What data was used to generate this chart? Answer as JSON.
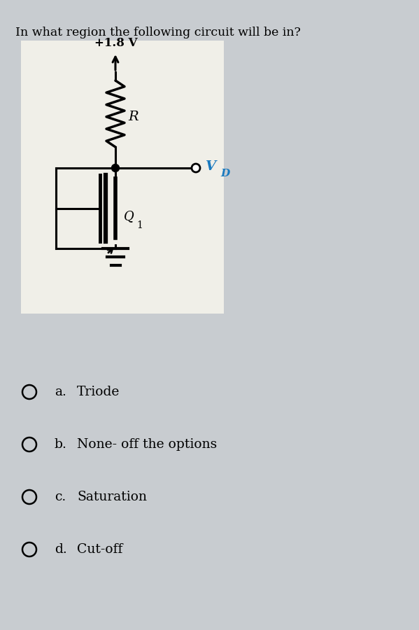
{
  "title": "In what region the following circuit will be in?",
  "title_fontsize": 12.5,
  "voltage_label": "+1.8 V",
  "vd_label": "V",
  "vd_subscript": "D",
  "resistor_label": "R",
  "transistor_label": "Q",
  "transistor_subscript": "1",
  "options": [
    {
      "letter": "a.",
      "text": "Triode"
    },
    {
      "letter": "b.",
      "text": "None- off the options"
    },
    {
      "letter": "c.",
      "text": "Saturation"
    },
    {
      "letter": "d.",
      "text": "Cut-off"
    }
  ],
  "bg_color": "#c8ccd0",
  "circuit_bg": "#f0efe8",
  "text_color": "#000000",
  "vd_color": "#1a7abf",
  "line_color": "#000000",
  "option_fontsize": 13.5
}
